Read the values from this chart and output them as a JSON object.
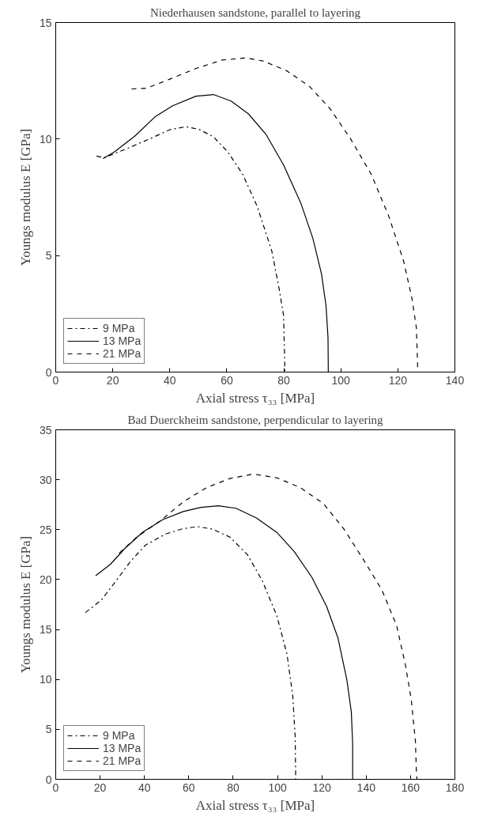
{
  "chart_data": [
    {
      "type": "line",
      "title": "Niederhausen sandstone, parallel to layering",
      "xlabel": "Axial stress τ₃₃ [MPa]",
      "ylabel": "Youngs modulus E [GPa]",
      "xlim": [
        0,
        140
      ],
      "ylim": [
        0,
        15
      ],
      "xticks": [
        0,
        20,
        40,
        60,
        80,
        100,
        120,
        140
      ],
      "yticks": [
        0,
        5,
        10,
        15
      ],
      "grid": false,
      "legend": "bottom left",
      "series": [
        {
          "name": "9 MPa",
          "color": "#000000",
          "line_style": "dashdot",
          "x": [
            14.3,
            17,
            24.6,
            32.8,
            40,
            45.6,
            50.2,
            55.3,
            60.4,
            65.6,
            70.7,
            75.8,
            78.4,
            79.9,
            80.4
          ],
          "values": [
            9.27,
            9.2,
            9.57,
            10.0,
            10.4,
            10.53,
            10.42,
            10.1,
            9.44,
            8.48,
            7.1,
            5.19,
            3.54,
            2.44,
            0
          ]
        },
        {
          "name": "13 MPa",
          "color": "#000000",
          "line_style": "solid",
          "x": [
            16.6,
            20.5,
            27.7,
            34.8,
            41,
            49.2,
            55.3,
            61.5,
            67.6,
            73.8,
            79.9,
            86,
            90.2,
            93.2,
            94.8,
            95.5,
            95.6
          ],
          "values": [
            9.16,
            9.44,
            10.12,
            10.95,
            11.43,
            11.84,
            11.91,
            11.63,
            11.08,
            10.19,
            8.89,
            7.24,
            5.73,
            4.22,
            2.85,
            1.48,
            0
          ]
        },
        {
          "name": "21 MPa",
          "color": "#000000",
          "line_style": "dashed",
          "x": [
            26.6,
            31.8,
            40,
            49.2,
            58.4,
            66.6,
            72.7,
            80.9,
            89.1,
            96.3,
            103.5,
            110.7,
            116.8,
            122,
            125,
            126.5,
            127
          ],
          "values": [
            12.15,
            12.18,
            12.57,
            13.03,
            13.39,
            13.48,
            13.35,
            12.94,
            12.25,
            11.29,
            9.99,
            8.48,
            6.69,
            4.77,
            3.13,
            1.89,
            0
          ]
        }
      ]
    },
    {
      "type": "line",
      "title": "Bad Duerckheim sandstone, perpendicular to layering",
      "xlabel": "Axial stress τ₃₃ [MPa]",
      "ylabel": "Youngs modulus E [GPa]",
      "xlim": [
        0,
        180
      ],
      "ylim": [
        0,
        35
      ],
      "xticks": [
        0,
        20,
        40,
        60,
        80,
        100,
        120,
        140,
        160,
        180
      ],
      "yticks": [
        0,
        5,
        10,
        15,
        20,
        25,
        30,
        35
      ],
      "grid": false,
      "legend": "bottom left",
      "series": [
        {
          "name": "9 MPa",
          "color": "#000000",
          "line_style": "dashdot",
          "x": [
            13.4,
            20.7,
            27.3,
            33.8,
            40.4,
            49.6,
            57.5,
            64.1,
            70.7,
            78.6,
            86.5,
            93.1,
            99.7,
            104.3,
            106.9,
            108,
            108.2
          ],
          "values": [
            16.7,
            17.98,
            19.9,
            21.84,
            23.44,
            24.57,
            25.11,
            25.3,
            25.05,
            24.25,
            22.48,
            19.91,
            16.38,
            12.52,
            8.35,
            4.17,
            0
          ]
        },
        {
          "name": "13 MPa",
          "color": "#000000",
          "line_style": "solid",
          "x": [
            18,
            24.6,
            31.2,
            39.1,
            48.3,
            57.5,
            65.4,
            73.3,
            81.3,
            90.5,
            99.7,
            107.6,
            115.5,
            122.1,
            127.3,
            131.3,
            133.3,
            133.9,
            133.9
          ],
          "values": [
            20.39,
            21.52,
            23.12,
            24.73,
            26.01,
            26.81,
            27.23,
            27.39,
            27.14,
            26.17,
            24.73,
            22.8,
            20.23,
            17.34,
            14.13,
            9.95,
            6.74,
            3.53,
            0
          ]
        },
        {
          "name": "21 MPa",
          "color": "#000000",
          "line_style": "dashed",
          "x": [
            28.6,
            36.5,
            47,
            57.5,
            68.1,
            78.6,
            89.1,
            99.7,
            110.2,
            120.7,
            130,
            139.2,
            147.1,
            153.7,
            157.6,
            160.3,
            162.2,
            162.6,
            162.9
          ],
          "values": [
            22.64,
            24.25,
            25.85,
            27.78,
            29.22,
            30.12,
            30.57,
            30.19,
            29.22,
            27.62,
            25.05,
            21.84,
            18.95,
            15.41,
            11.56,
            8.03,
            3.85,
            0.96,
            0
          ]
        }
      ]
    }
  ]
}
